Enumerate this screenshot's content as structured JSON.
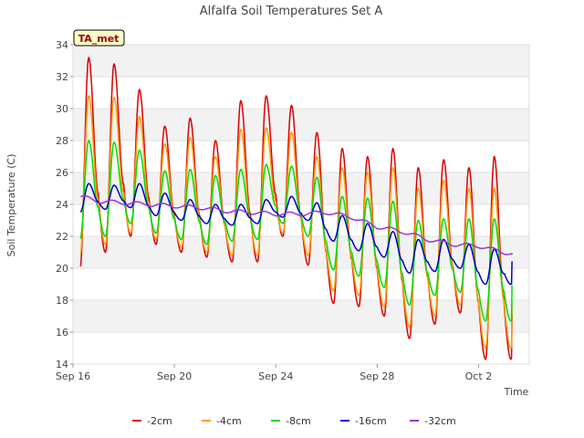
{
  "chart_data": {
    "type": "line",
    "title": "Alfalfa Soil Temperatures Set A",
    "xlabel": "Time",
    "ylabel": "Soil Temperature (C)",
    "station_tag": "TA_met",
    "x_range_days": [
      0,
      18
    ],
    "ylim": [
      14,
      34
    ],
    "y_ticks": [
      14,
      16,
      18,
      20,
      22,
      24,
      26,
      28,
      30,
      32,
      34
    ],
    "x_ticks": [
      {
        "day": 0,
        "label": "Sep 16"
      },
      {
        "day": 4,
        "label": "Sep 20"
      },
      {
        "day": 8,
        "label": "Sep 24"
      },
      {
        "day": 12,
        "label": "Sep 28"
      },
      {
        "day": 16,
        "label": "Oct 2"
      }
    ],
    "grid": "horizontal bands",
    "legend_position": "bottom",
    "data_span_days": [
      0.3,
      17.35
    ],
    "series": [
      {
        "name": "-2cm",
        "color": "#dd0000",
        "daily_max": [
          33.2,
          32.8,
          31.2,
          28.9,
          29.4,
          28.0,
          30.5,
          30.8,
          30.2,
          28.5,
          27.5,
          27.0,
          27.5,
          26.3,
          26.8,
          26.3,
          27.0
        ],
        "daily_min": [
          20.0,
          21.0,
          22.0,
          21.5,
          21.0,
          20.7,
          20.4,
          20.4,
          22.0,
          20.2,
          17.8,
          17.6,
          17.0,
          15.6,
          16.5,
          17.2,
          14.3
        ],
        "start": 22.2,
        "end": 17.1
      },
      {
        "name": "-4cm",
        "color": "#ff9900",
        "daily_max": [
          30.8,
          30.7,
          29.5,
          27.8,
          28.2,
          27.0,
          28.7,
          28.8,
          28.5,
          27.0,
          26.3,
          26.0,
          26.3,
          25.0,
          25.5,
          25.0,
          25.0
        ],
        "daily_min": [
          20.8,
          21.5,
          22.2,
          21.8,
          21.3,
          21.0,
          20.8,
          20.8,
          22.2,
          20.8,
          18.6,
          18.3,
          17.6,
          16.3,
          17.0,
          17.7,
          15.0
        ],
        "start": 22.0,
        "end": 17.8
      },
      {
        "name": "-8cm",
        "color": "#00dd00",
        "daily_max": [
          28.0,
          27.9,
          27.4,
          26.1,
          26.2,
          25.8,
          26.2,
          26.5,
          26.4,
          25.7,
          24.5,
          24.4,
          24.2,
          23.0,
          23.1,
          23.1,
          23.1
        ],
        "daily_min": [
          21.8,
          22.0,
          22.8,
          22.2,
          21.8,
          21.5,
          21.7,
          21.8,
          22.8,
          22.0,
          19.9,
          19.5,
          18.8,
          17.7,
          18.3,
          18.5,
          16.7
        ],
        "start": 23.0,
        "end": 18.9
      },
      {
        "name": "-16cm",
        "color": "#0000cc",
        "daily_max": [
          25.3,
          25.2,
          25.3,
          24.7,
          24.3,
          24.0,
          24.0,
          24.3,
          24.5,
          24.1,
          23.3,
          22.8,
          22.3,
          21.8,
          21.8,
          21.5,
          21.2
        ],
        "daily_min": [
          23.5,
          23.7,
          23.8,
          23.3,
          23.0,
          22.8,
          22.7,
          22.8,
          23.2,
          23.0,
          21.7,
          21.1,
          20.7,
          19.7,
          19.8,
          20.0,
          19.0
        ],
        "start": 24.7,
        "end": 20.4
      },
      {
        "name": "-32cm",
        "color": "#9933dd",
        "points": [
          [
            0.3,
            24.5
          ],
          [
            1.0,
            24.2
          ],
          [
            2.0,
            24.1
          ],
          [
            3.0,
            24.0
          ],
          [
            4.0,
            23.9
          ],
          [
            5.0,
            23.8
          ],
          [
            6.0,
            23.6
          ],
          [
            7.0,
            23.5
          ],
          [
            8.0,
            23.4
          ],
          [
            9.0,
            23.4
          ],
          [
            10.0,
            23.5
          ],
          [
            11.0,
            23.2
          ],
          [
            12.0,
            22.6
          ],
          [
            13.0,
            22.3
          ],
          [
            14.0,
            21.8
          ],
          [
            15.0,
            21.5
          ],
          [
            16.0,
            21.4
          ],
          [
            17.0,
            21.0
          ],
          [
            17.35,
            20.9
          ]
        ]
      }
    ]
  }
}
